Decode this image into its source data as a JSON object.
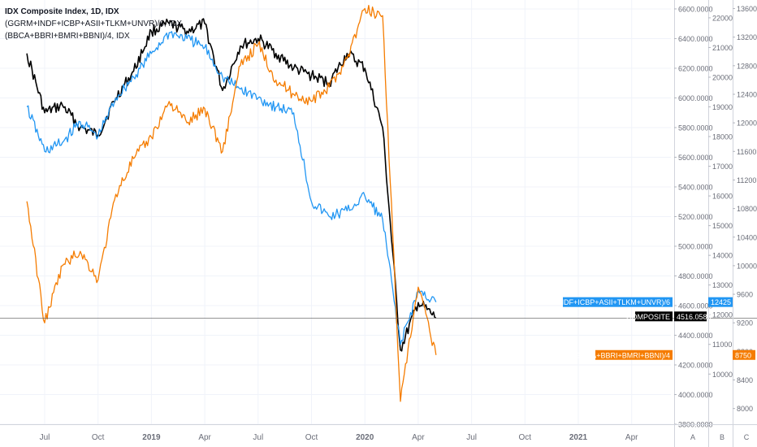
{
  "legend": {
    "line0": "IDX Composite Index, 1D, IDX",
    "line1": "(GGRM+INDF+ICBP+ASII+TLKM+UNVR)/6, IDX",
    "line2": "(BBCA+BBRI+BMRI+BBNI)/4, IDX"
  },
  "colors": {
    "composite": "#000000",
    "consumer": "#2196F3",
    "banks": "#F57C00",
    "grid": "#f0f3fa",
    "axis_text": "#6a6d78",
    "crosshair": "#555555"
  },
  "chart_data": {
    "type": "line",
    "x_labels": [
      "Jul",
      "Oct",
      "2019",
      "Apr",
      "Jul",
      "Oct",
      "2020",
      "Apr",
      "Jul",
      "Oct",
      "2021",
      "Apr"
    ],
    "axes": [
      {
        "id": "A",
        "ylim": [
          3800,
          6660
        ],
        "ticks": [
          "6600.0000",
          "6400.0000",
          "6200.0000",
          "6000.0000",
          "5800.0000",
          "5600.0000",
          "5400.0000",
          "5200.0000",
          "5000.0000",
          "4800.0000",
          "4600.0000",
          "4400.0000",
          "4200.0000",
          "4000.0000",
          "3800.0000"
        ]
      },
      {
        "id": "B",
        "ylim": [
          8310,
          22600
        ],
        "ticks": [
          "22000",
          "21000",
          "20000",
          "19000",
          "18000",
          "17000",
          "16000",
          "15000",
          "14000",
          "13000",
          "12000",
          "11000",
          "10000"
        ]
      },
      {
        "id": "C",
        "ylim": [
          7780,
          13720
        ],
        "ticks": [
          "13600",
          "13200",
          "12800",
          "12400",
          "12000",
          "11600",
          "11200",
          "10800",
          "10400",
          "10000",
          "9600",
          "9200",
          "8800",
          "8400",
          "8000"
        ]
      }
    ],
    "axis_footer": [
      "A",
      "B",
      "C"
    ],
    "series": [
      {
        "name": "COMPOSITE",
        "axis": "A",
        "last_value": "4516.0580",
        "points": [
          [
            "Jun 2018",
            6300
          ],
          [
            "Jul 2018",
            5900
          ],
          [
            "Aug 2018",
            5950
          ],
          [
            "Sep 2018",
            5800
          ],
          [
            "Oct 2018",
            5750
          ],
          [
            "Nov 2018",
            6000
          ],
          [
            "Dec 2018",
            6180
          ],
          [
            "Jan 2019",
            6450
          ],
          [
            "Feb 2019",
            6500
          ],
          [
            "Mar 2019",
            6450
          ],
          [
            "Apr 2019",
            6500
          ],
          [
            "May 2019",
            6050
          ],
          [
            "Jun 2019",
            6350
          ],
          [
            "Jul 2019",
            6400
          ],
          [
            "Aug 2019",
            6300
          ],
          [
            "Sep 2019",
            6200
          ],
          [
            "Oct 2019",
            6150
          ],
          [
            "Nov 2019",
            6100
          ],
          [
            "Dec 2019",
            6300
          ],
          [
            "Jan 2020",
            6200
          ],
          [
            "Feb 2020",
            5800
          ],
          [
            "Mar 2020",
            4300
          ],
          [
            "Apr 2020",
            4620
          ],
          [
            "May 2020",
            4516
          ]
        ]
      },
      {
        "name": "(GGRM+INDF+ICBP+ASII+TLKM+UNVR)/6",
        "axis": "B",
        "last_value": "12425",
        "points": [
          [
            "Jun 2018",
            19000
          ],
          [
            "Jul 2018",
            17500
          ],
          [
            "Aug 2018",
            17800
          ],
          [
            "Sep 2018",
            18500
          ],
          [
            "Oct 2018",
            18000
          ],
          [
            "Nov 2018",
            19300
          ],
          [
            "Dec 2018",
            20000
          ],
          [
            "Jan 2019",
            20800
          ],
          [
            "Feb 2019",
            21500
          ],
          [
            "Mar 2019",
            21300
          ],
          [
            "Apr 2019",
            21000
          ],
          [
            "May 2019",
            20000
          ],
          [
            "Jun 2019",
            19600
          ],
          [
            "Jul 2019",
            19300
          ],
          [
            "Aug 2019",
            19000
          ],
          [
            "Sep 2019",
            18800
          ],
          [
            "Oct 2019",
            15800
          ],
          [
            "Nov 2019",
            15300
          ],
          [
            "Dec 2019",
            15500
          ],
          [
            "Jan 2020",
            16000
          ],
          [
            "Feb 2020",
            15200
          ],
          [
            "Mar 2020",
            11000
          ],
          [
            "Apr 2020",
            12800
          ],
          [
            "May 2020",
            12425
          ]
        ]
      },
      {
        "name": "(BBCA+BBRI+BMRI+BBNI)/4",
        "axis": "C",
        "last_value": "8750",
        "points": [
          [
            "Jun 2018",
            10900
          ],
          [
            "Jul 2018",
            9200
          ],
          [
            "Aug 2018",
            10000
          ],
          [
            "Sep 2018",
            10200
          ],
          [
            "Oct 2018",
            9800
          ],
          [
            "Nov 2018",
            11000
          ],
          [
            "Dec 2018",
            11500
          ],
          [
            "Jan 2019",
            11800
          ],
          [
            "Feb 2019",
            12300
          ],
          [
            "Mar 2019",
            12000
          ],
          [
            "Apr 2019",
            12200
          ],
          [
            "May 2019",
            11600
          ],
          [
            "Jun 2019",
            12800
          ],
          [
            "Jul 2019",
            13100
          ],
          [
            "Aug 2019",
            12600
          ],
          [
            "Sep 2019",
            12400
          ],
          [
            "Oct 2019",
            12300
          ],
          [
            "Nov 2019",
            12500
          ],
          [
            "Dec 2019",
            12900
          ],
          [
            "Jan 2020",
            13600
          ],
          [
            "Feb 2020",
            13500
          ],
          [
            "Mar 2020",
            8100
          ],
          [
            "Apr 2020",
            9700
          ],
          [
            "May 2020",
            8750
          ]
        ]
      }
    ],
    "series_labels": [
      "COMPOSITE",
      "(GGRM+INDF+ICBP+ASII+TLKM+UNVR)/6",
      "(BBCA+BBRI+BMRI+BBNI)/4"
    ],
    "crosshair_value": "4516.0580",
    "grid": true,
    "legend_position": "top-left"
  }
}
